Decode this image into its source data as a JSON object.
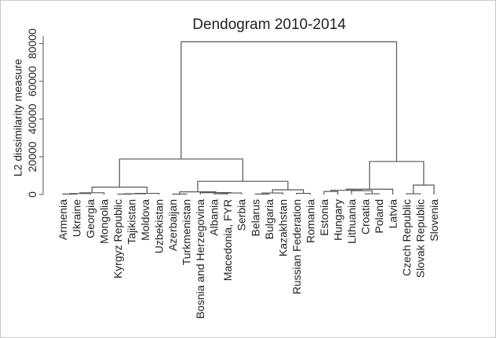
{
  "chart_data": {
    "type": "dendrogram",
    "title": "Dendogram 2010-2014",
    "y_label": "L2 dissimilarity measure",
    "categories": [
      "Armenia",
      "Ukraine",
      "Georgia",
      "Mongolia",
      "Kyrgyz Republic",
      "Tajikistan",
      "Moldova",
      "Uzbekistan",
      "Azerbaijan",
      "Turkmenistan",
      "Bosnia and Herzegovina",
      "Albania",
      "Macedonia, FYR",
      "Serbia",
      "Belarus",
      "Bulgaria",
      "Kazakhstan",
      "Russian Federation",
      "Romania",
      "Estonia",
      "Hungary",
      "Lithuania",
      "Croatia",
      "Poland",
      "Latvia",
      "Czech Republic",
      "Slovak Republic",
      "Slovenia"
    ],
    "merges": [
      {
        "children": [
          0,
          1
        ],
        "height": 200
      },
      {
        "children": [
          28,
          2
        ],
        "height": 500
      },
      {
        "children": [
          29,
          3
        ],
        "height": 900
      },
      {
        "children": [
          4,
          5
        ],
        "height": 200
      },
      {
        "children": [
          31,
          6
        ],
        "height": 400
      },
      {
        "children": [
          32,
          7
        ],
        "height": 600
      },
      {
        "children": [
          30,
          33
        ],
        "height": 3900
      },
      {
        "children": [
          8,
          9
        ],
        "height": 200
      },
      {
        "children": [
          11,
          12
        ],
        "height": 400
      },
      {
        "children": [
          36,
          13
        ],
        "height": 800
      },
      {
        "children": [
          10,
          37
        ],
        "height": 1000
      },
      {
        "children": [
          35,
          38
        ],
        "height": 1400
      },
      {
        "children": [
          14,
          15
        ],
        "height": 200
      },
      {
        "children": [
          40,
          16
        ],
        "height": 800
      },
      {
        "children": [
          17,
          18
        ],
        "height": 600
      },
      {
        "children": [
          41,
          42
        ],
        "height": 2500
      },
      {
        "children": [
          39,
          43
        ],
        "height": 7000
      },
      {
        "children": [
          34,
          44
        ],
        "height": 18800
      },
      {
        "children": [
          19,
          20
        ],
        "height": 1600
      },
      {
        "children": [
          22,
          23
        ],
        "height": 400
      },
      {
        "children": [
          21,
          47
        ],
        "height": 2000
      },
      {
        "children": [
          46,
          48
        ],
        "height": 2200
      },
      {
        "children": [
          49,
          24
        ],
        "height": 2800
      },
      {
        "children": [
          25,
          26
        ],
        "height": 400
      },
      {
        "children": [
          51,
          27
        ],
        "height": 5000
      },
      {
        "children": [
          50,
          52
        ],
        "height": 17500
      },
      {
        "children": [
          45,
          53
        ],
        "height": 81000
      }
    ],
    "ylim": [
      0,
      84000
    ],
    "yticks": [
      0,
      20000,
      40000,
      60000,
      80000
    ],
    "color": "#555555"
  }
}
